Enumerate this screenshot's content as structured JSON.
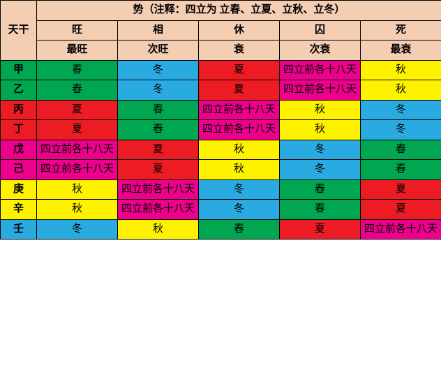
{
  "table": {
    "title": "势（注释：四立为 立春、立夏、立秋、立冬）",
    "corner": "天干",
    "group_headers": [
      "旺",
      "相",
      "休",
      "囚",
      "死"
    ],
    "sub_headers": [
      "最旺",
      "次旺",
      "衰",
      "次衰",
      "最衰"
    ],
    "header_bg": "#f4ceb2",
    "header_fontsize": 15,
    "colors": {
      "green": "#00a650",
      "blue": "#29abe2",
      "red": "#ed1c24",
      "pink": "#ec008c",
      "yellow": "#fff200",
      "black": "#000000"
    },
    "rows": [
      {
        "label": "甲",
        "label_color": "green",
        "cells": [
          {
            "text": "春",
            "color": "green"
          },
          {
            "text": "冬",
            "color": "blue"
          },
          {
            "text": "夏",
            "color": "red"
          },
          {
            "text": "四立前各十八天",
            "color": "pink"
          },
          {
            "text": "秋",
            "color": "yellow"
          }
        ]
      },
      {
        "label": "乙",
        "label_color": "green",
        "cells": [
          {
            "text": "春",
            "color": "green"
          },
          {
            "text": "冬",
            "color": "blue"
          },
          {
            "text": "夏",
            "color": "red"
          },
          {
            "text": "四立前各十八天",
            "color": "pink"
          },
          {
            "text": "秋",
            "color": "yellow"
          }
        ]
      },
      {
        "label": "丙",
        "label_color": "red",
        "cells": [
          {
            "text": "夏",
            "color": "red"
          },
          {
            "text": "春",
            "color": "green"
          },
          {
            "text": "四立前各十八天",
            "color": "pink"
          },
          {
            "text": "秋",
            "color": "yellow"
          },
          {
            "text": "冬",
            "color": "blue"
          }
        ]
      },
      {
        "label": "丁",
        "label_color": "red",
        "cells": [
          {
            "text": "夏",
            "color": "red"
          },
          {
            "text": "春",
            "color": "green"
          },
          {
            "text": "四立前各十八天",
            "color": "pink"
          },
          {
            "text": "秋",
            "color": "yellow"
          },
          {
            "text": "冬",
            "color": "blue"
          }
        ]
      },
      {
        "label": "戊",
        "label_color": "pink",
        "cells": [
          {
            "text": "四立前各十八天",
            "color": "pink"
          },
          {
            "text": "夏",
            "color": "red"
          },
          {
            "text": "秋",
            "color": "yellow"
          },
          {
            "text": "冬",
            "color": "blue"
          },
          {
            "text": "春",
            "color": "green"
          }
        ]
      },
      {
        "label": "己",
        "label_color": "pink",
        "cells": [
          {
            "text": "四立前各十八天",
            "color": "pink"
          },
          {
            "text": "夏",
            "color": "red"
          },
          {
            "text": "秋",
            "color": "yellow"
          },
          {
            "text": "冬",
            "color": "blue"
          },
          {
            "text": "春",
            "color": "green"
          }
        ]
      },
      {
        "label": "庚",
        "label_color": "yellow",
        "cells": [
          {
            "text": "秋",
            "color": "yellow"
          },
          {
            "text": "四立前各十八天",
            "color": "pink"
          },
          {
            "text": "冬",
            "color": "blue"
          },
          {
            "text": "春",
            "color": "green"
          },
          {
            "text": "夏",
            "color": "red"
          }
        ]
      },
      {
        "label": "辛",
        "label_color": "yellow",
        "cells": [
          {
            "text": "秋",
            "color": "yellow"
          },
          {
            "text": "四立前各十八天",
            "color": "pink"
          },
          {
            "text": "冬",
            "color": "blue"
          },
          {
            "text": "春",
            "color": "green"
          },
          {
            "text": "夏",
            "color": "red"
          }
        ]
      },
      {
        "label": "壬",
        "label_color": "blue",
        "cells": [
          {
            "text": "冬",
            "color": "blue"
          },
          {
            "text": "秋",
            "color": "yellow"
          },
          {
            "text": "春",
            "color": "green"
          },
          {
            "text": "夏",
            "color": "red"
          },
          {
            "text": "四立前各十八天",
            "color": "pink"
          }
        ]
      }
    ]
  }
}
